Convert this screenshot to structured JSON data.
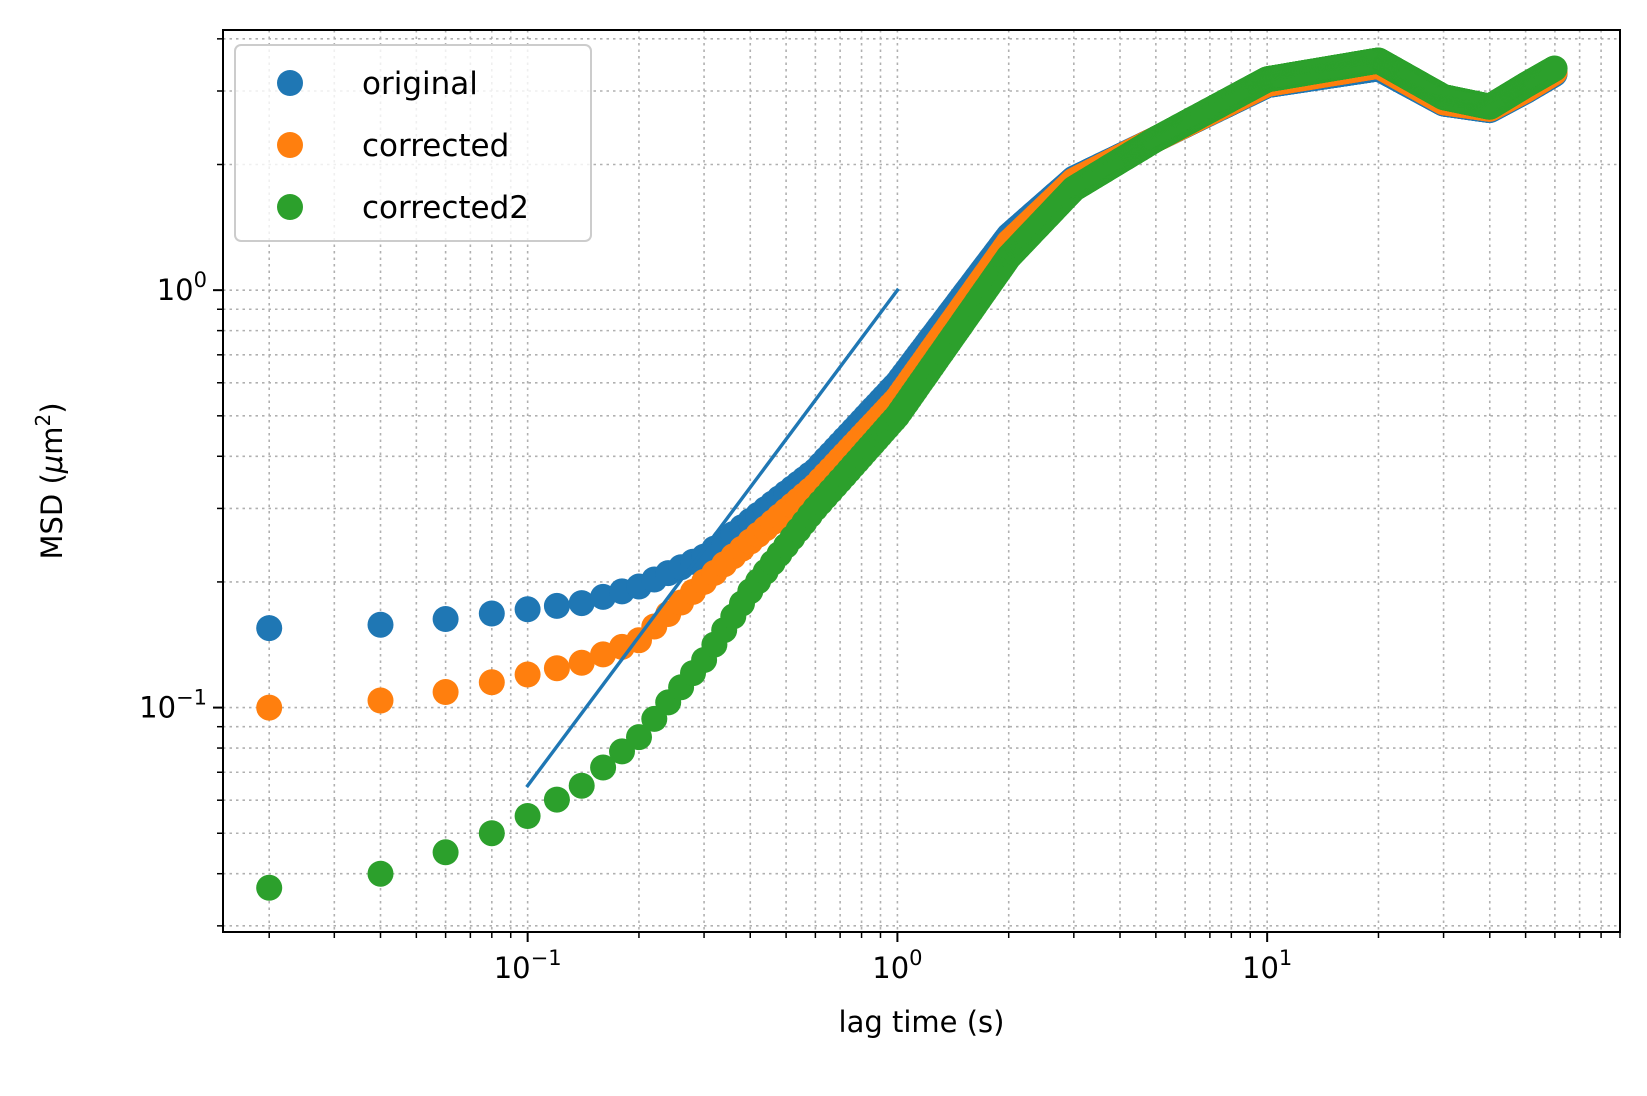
{
  "chart_data": {
    "type": "scatter",
    "xscale": "log",
    "yscale": "log",
    "xlim": [
      0.015,
      90
    ],
    "ylim": [
      0.029,
      4.2
    ],
    "grid": true,
    "grid_which": "both",
    "xlabel": "lag time (s)",
    "ylabel_prefix": "MSD (",
    "ylabel_mu": "μ",
    "ylabel_unit": "m",
    "ylabel_sup": "2",
    "ylabel_suffix": ")",
    "xticks": [
      {
        "value": 0.1,
        "base": "10",
        "exp": "−1"
      },
      {
        "value": 1,
        "base": "10",
        "exp": "0"
      },
      {
        "value": 10,
        "base": "10",
        "exp": "1"
      }
    ],
    "yticks": [
      {
        "value": 0.1,
        "base": "10",
        "exp": "−1"
      },
      {
        "value": 1,
        "base": "10",
        "exp": "0"
      }
    ],
    "legend_position": "upper left",
    "series": [
      {
        "name": "original",
        "color": "#1f77b4",
        "points": [
          [
            0.02,
            0.155
          ],
          [
            0.04,
            0.158
          ],
          [
            0.06,
            0.163
          ],
          [
            0.08,
            0.168
          ],
          [
            0.1,
            0.172
          ],
          [
            0.14,
            0.178
          ],
          [
            0.2,
            0.195
          ],
          [
            0.3,
            0.23
          ],
          [
            0.4,
            0.28
          ],
          [
            0.6,
            0.37
          ],
          [
            1.0,
            0.6
          ],
          [
            2.0,
            1.35
          ],
          [
            3.0,
            1.85
          ],
          [
            5.0,
            2.3
          ],
          [
            10.0,
            3.1
          ],
          [
            20.0,
            3.4
          ],
          [
            30.0,
            2.8
          ],
          [
            40.0,
            2.7
          ],
          [
            50.0,
            3.0
          ],
          [
            60.0,
            3.3
          ]
        ]
      },
      {
        "name": "corrected",
        "color": "#ff7f0e",
        "points": [
          [
            0.02,
            0.1
          ],
          [
            0.04,
            0.104
          ],
          [
            0.06,
            0.109
          ],
          [
            0.08,
            0.115
          ],
          [
            0.1,
            0.12
          ],
          [
            0.14,
            0.128
          ],
          [
            0.2,
            0.145
          ],
          [
            0.3,
            0.2
          ],
          [
            0.4,
            0.25
          ],
          [
            0.6,
            0.34
          ],
          [
            1.0,
            0.55
          ],
          [
            2.0,
            1.3
          ],
          [
            3.0,
            1.83
          ],
          [
            5.0,
            2.3
          ],
          [
            10.0,
            3.12
          ],
          [
            20.0,
            3.45
          ],
          [
            30.0,
            2.82
          ],
          [
            40.0,
            2.72
          ],
          [
            50.0,
            3.02
          ],
          [
            60.0,
            3.33
          ]
        ]
      },
      {
        "name": "corrected2",
        "color": "#2ca02c",
        "points": [
          [
            0.02,
            0.037
          ],
          [
            0.04,
            0.04
          ],
          [
            0.06,
            0.045
          ],
          [
            0.08,
            0.05
          ],
          [
            0.1,
            0.055
          ],
          [
            0.14,
            0.065
          ],
          [
            0.2,
            0.085
          ],
          [
            0.3,
            0.13
          ],
          [
            0.4,
            0.19
          ],
          [
            0.6,
            0.3
          ],
          [
            1.0,
            0.5
          ],
          [
            2.0,
            1.2
          ],
          [
            3.0,
            1.75
          ],
          [
            5.0,
            2.3
          ],
          [
            10.0,
            3.2
          ],
          [
            20.0,
            3.55
          ],
          [
            30.0,
            2.9
          ],
          [
            40.0,
            2.75
          ],
          [
            50.0,
            3.1
          ],
          [
            60.0,
            3.4
          ]
        ]
      }
    ],
    "reference_line": {
      "color": "#1f77b4",
      "points": [
        [
          0.1,
          0.065
        ],
        [
          1.0,
          1.0
        ]
      ]
    }
  }
}
